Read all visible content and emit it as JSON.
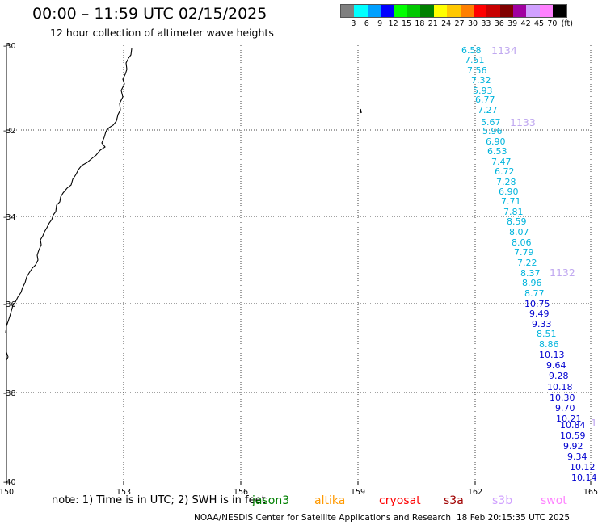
{
  "header": {
    "title": "00:00 – 11:59 UTC 02/15/2025",
    "subtitle": "12 hour collection of altimeter wave heights"
  },
  "legend": {
    "colors": [
      "#808080",
      "#00ffff",
      "#00a0ff",
      "#0000ff",
      "#00ff00",
      "#00c800",
      "#008000",
      "#ffff00",
      "#ffc800",
      "#ff8000",
      "#ff0000",
      "#c80000",
      "#800000",
      "#a000a0",
      "#d0a0ff",
      "#ff80ff",
      "#000000"
    ],
    "labels": [
      "3",
      "6",
      "9",
      "12",
      "15",
      "18",
      "21",
      "24",
      "27",
      "30",
      "33",
      "36",
      "39",
      "42",
      "45",
      "70",
      "(ft)"
    ]
  },
  "axes": {
    "x_ticks": [
      "150",
      "153",
      "156",
      "159",
      "162",
      "165"
    ],
    "y_ticks": [
      "-30",
      "-32",
      "-34",
      "-36",
      "-38",
      "-40"
    ]
  },
  "passes": [
    {
      "label": "1134",
      "color": "#c0a8f0"
    },
    {
      "label": "1133",
      "color": "#c0a8f0"
    },
    {
      "label": "1132",
      "color": "#c0a8f0"
    },
    {
      "label": "1",
      "color": "#c0a8f0"
    }
  ],
  "track": [
    {
      "text": "6.58",
      "color": "#00b4dc"
    },
    {
      "text": "7.51",
      "color": "#00b4dc"
    },
    {
      "text": "7.56",
      "color": "#00b4dc"
    },
    {
      "text": "7.32",
      "color": "#00b4dc"
    },
    {
      "text": "5.93",
      "color": "#00b4dc"
    },
    {
      "text": "6.77",
      "color": "#00b4dc"
    },
    {
      "text": "7.27",
      "color": "#00b4dc"
    },
    {
      "text": "5.67",
      "color": "#00b4dc"
    },
    {
      "text": "5.96",
      "color": "#00b4dc"
    },
    {
      "text": "6.90",
      "color": "#00b4dc"
    },
    {
      "text": "6.53",
      "color": "#00b4dc"
    },
    {
      "text": "7.47",
      "color": "#00b4dc"
    },
    {
      "text": "6.72",
      "color": "#00b4dc"
    },
    {
      "text": "7.28",
      "color": "#00b4dc"
    },
    {
      "text": "6.90",
      "color": "#00b4dc"
    },
    {
      "text": "7.71",
      "color": "#00b4dc"
    },
    {
      "text": "7.81",
      "color": "#00b4dc"
    },
    {
      "text": "8.59",
      "color": "#00b4dc"
    },
    {
      "text": "8.07",
      "color": "#00b4dc"
    },
    {
      "text": "8.06",
      "color": "#00b4dc"
    },
    {
      "text": "7.79",
      "color": "#00b4dc"
    },
    {
      "text": "7.22",
      "color": "#00b4dc"
    },
    {
      "text": "8.37",
      "color": "#00b4dc"
    },
    {
      "text": "8.96",
      "color": "#00b4dc"
    },
    {
      "text": "8.77",
      "color": "#00b4dc"
    },
    {
      "text": "10.75",
      "color": "#0000d0"
    },
    {
      "text": "9.49",
      "color": "#0000d0"
    },
    {
      "text": "9.33",
      "color": "#0000d0"
    },
    {
      "text": "8.51",
      "color": "#00b4dc"
    },
    {
      "text": "8.86",
      "color": "#00b4dc"
    },
    {
      "text": "10.13",
      "color": "#0000d0"
    },
    {
      "text": "9.64",
      "color": "#0000d0"
    },
    {
      "text": "9.28",
      "color": "#0000d0"
    },
    {
      "text": "10.18",
      "color": "#0000d0"
    },
    {
      "text": "10.30",
      "color": "#0000d0"
    },
    {
      "text": "9.70",
      "color": "#0000d0"
    },
    {
      "text": "10.21",
      "color": "#0000d0"
    },
    {
      "text": "10.84",
      "color": "#0000d0"
    },
    {
      "text": "10.59",
      "color": "#0000d0"
    },
    {
      "text": "9.92",
      "color": "#0000d0"
    },
    {
      "text": "9.34",
      "color": "#0000d0"
    },
    {
      "text": "10.12",
      "color": "#0000d0"
    },
    {
      "text": "10.14",
      "color": "#0000d0"
    }
  ],
  "footer": {
    "note": "note:  1) Time is in UTC; 2) SWH is in feet",
    "satellites": [
      {
        "name": "jason3",
        "color": "#008000"
      },
      {
        "name": "altika",
        "color": "#ff9900"
      },
      {
        "name": "cryosat",
        "color": "#ff0000"
      },
      {
        "name": "s3a",
        "color": "#a00000"
      },
      {
        "name": "s3b",
        "color": "#d0a0ff"
      },
      {
        "name": "swot",
        "color": "#ff80ff"
      }
    ],
    "credit": "NOAA/NESDIS Center for Satellite Applications and Research",
    "generated": "18 Feb 20:15:35 UTC 2025"
  }
}
